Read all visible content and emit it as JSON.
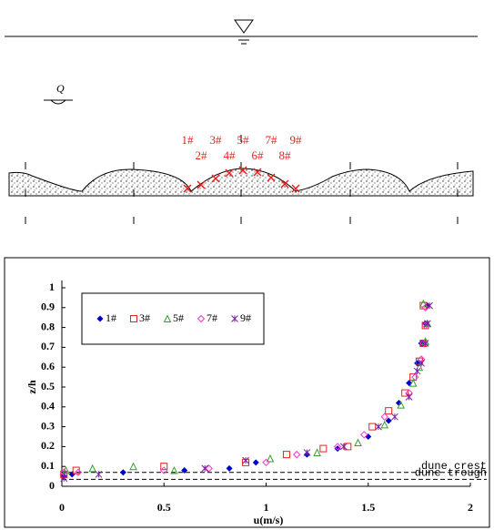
{
  "diagram": {
    "flow_label": "Q",
    "stations": [
      "1#",
      "2#",
      "3#",
      "4#",
      "5#",
      "6#",
      "7#",
      "8#",
      "9#"
    ]
  },
  "chart_data": {
    "type": "scatter",
    "x_label": "u(m/s)",
    "y_label": "z/h",
    "xlim": [
      0,
      2
    ],
    "ylim": [
      0,
      1
    ],
    "xticks": [
      0,
      0.5,
      1,
      1.5,
      2
    ],
    "yticks": [
      0,
      0.1,
      0.2,
      0.3,
      0.4,
      0.5,
      0.6,
      0.7,
      0.8,
      0.9,
      1
    ],
    "annotations": [
      {
        "text": "dune crest",
        "y": 0.07
      },
      {
        "text": "dune trough",
        "y": 0.035
      }
    ],
    "series": [
      {
        "name": "1#",
        "color": "#0000cc",
        "marker": "diamond",
        "x": [
          0.01,
          0.05,
          0.3,
          0.6,
          0.82,
          0.95,
          1.2,
          1.35,
          1.5,
          1.6,
          1.65,
          1.7,
          1.74,
          1.76,
          1.78,
          1.79
        ],
        "values": [
          0.05,
          0.06,
          0.07,
          0.08,
          0.09,
          0.12,
          0.16,
          0.19,
          0.25,
          0.33,
          0.42,
          0.52,
          0.62,
          0.72,
          0.82,
          0.91
        ]
      },
      {
        "name": "3#",
        "color": "#e8211d",
        "marker": "square",
        "x": [
          0.01,
          0.07,
          0.5,
          0.9,
          1.1,
          1.28,
          1.4,
          1.52,
          1.6,
          1.68,
          1.72,
          1.75,
          1.77,
          1.78,
          1.77
        ],
        "values": [
          0.06,
          0.08,
          0.1,
          0.12,
          0.16,
          0.19,
          0.2,
          0.3,
          0.38,
          0.47,
          0.55,
          0.63,
          0.72,
          0.81,
          0.91
        ]
      },
      {
        "name": "5#",
        "color": "#33a02c",
        "marker": "triangle",
        "x": [
          0.02,
          0.15,
          0.35,
          0.55,
          1.02,
          1.25,
          1.45,
          1.58,
          1.66,
          1.72,
          1.75,
          1.78,
          1.79,
          1.77
        ],
        "values": [
          0.08,
          0.09,
          0.1,
          0.08,
          0.14,
          0.17,
          0.22,
          0.31,
          0.41,
          0.52,
          0.6,
          0.73,
          0.82,
          0.92
        ]
      },
      {
        "name": "7#",
        "color": "#ff33cc",
        "marker": "diamond-open",
        "x": [
          0.01,
          0.08,
          0.5,
          0.72,
          1.0,
          1.15,
          1.35,
          1.48,
          1.58,
          1.7,
          1.73,
          1.76,
          1.77,
          1.78,
          1.78
        ],
        "values": [
          0.07,
          0.07,
          0.08,
          0.09,
          0.12,
          0.16,
          0.2,
          0.26,
          0.35,
          0.47,
          0.55,
          0.64,
          0.72,
          0.81,
          0.9
        ]
      },
      {
        "name": "9#",
        "color": "#7a1fa2",
        "marker": "asterisk",
        "x": [
          0.01,
          0.18,
          0.7,
          0.9,
          1.2,
          1.38,
          1.55,
          1.63,
          1.7,
          1.74,
          1.76,
          1.78,
          1.79,
          1.8
        ],
        "values": [
          0.04,
          0.06,
          0.09,
          0.13,
          0.17,
          0.2,
          0.3,
          0.35,
          0.45,
          0.58,
          0.62,
          0.72,
          0.82,
          0.91
        ]
      }
    ]
  }
}
